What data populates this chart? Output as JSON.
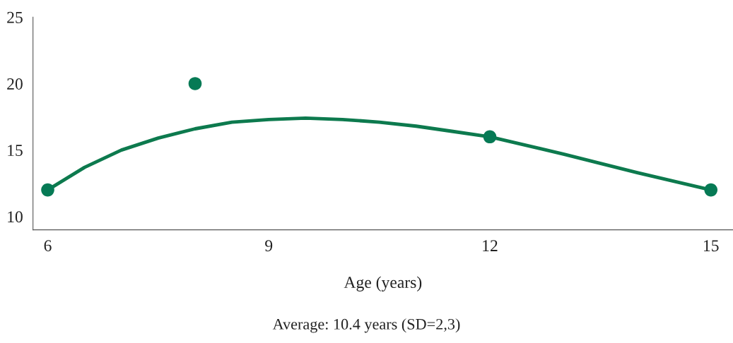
{
  "chart_data": {
    "type": "line",
    "xlabel": "Age (years)",
    "annotations": [
      "Average: 10.4 years (SD=2,3)"
    ],
    "series": [
      {
        "color": "#0d7a4e",
        "marker": "none",
        "x": [
          6,
          6.5,
          7,
          7.5,
          8,
          8.5,
          9,
          9.5,
          10,
          10.5,
          11,
          11.5,
          12,
          13,
          14,
          15
        ],
        "values": [
          12,
          13.7,
          15.0,
          15.9,
          16.6,
          17.1,
          17.3,
          17.4,
          17.3,
          17.1,
          16.8,
          16.4,
          16,
          14.7,
          13.3,
          12
        ]
      },
      {
        "type": "scatter",
        "marker": "circle",
        "color": "#067a55",
        "x": [
          6,
          8,
          12,
          15
        ],
        "values": [
          12,
          20,
          16,
          12
        ]
      }
    ],
    "xlim": [
      5.8,
      15.3
    ],
    "xticks": [
      6,
      9,
      12,
      15
    ],
    "ylim": [
      9,
      25
    ],
    "yticks": [
      10,
      15,
      20,
      25
    ],
    "grid": false
  }
}
